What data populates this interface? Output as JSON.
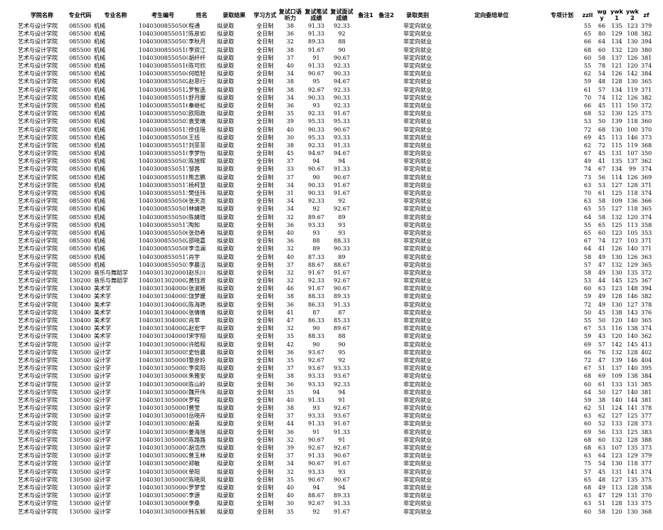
{
  "table": {
    "headers": [
      "学院名称",
      "专业代码",
      "专业名称",
      "考生编号",
      "姓名",
      "录取结果",
      "学习方式",
      "复试口语听力",
      "复试笔试成绩",
      "复试面试成绩",
      "备注1",
      "备注2",
      "录取类别",
      "定向委培单位",
      "专项计划",
      "zzll",
      "wgy",
      "ywk1",
      "ywk2",
      "zf"
    ],
    "rows": [
      [
        "艺术与设计学院",
        "085500",
        "机械",
        "104030085505009",
        "程通",
        "拟录取",
        "全日制",
        38,
        "91.33",
        "92.33",
        "",
        "",
        "非定向就业",
        "",
        "",
        55,
        66,
        135,
        123,
        379
      ],
      [
        "艺术与设计学院",
        "085500",
        "机械",
        "104030085505155",
        "陈彦如",
        "拟录取",
        "全日制",
        36,
        "91.33",
        "92",
        "",
        "",
        "非定向就业",
        "",
        "",
        65,
        80,
        129,
        108,
        382
      ],
      [
        "艺术与设计学院",
        "085500",
        "机械",
        "104030085505034",
        "李秋月",
        "拟录取",
        "全日制",
        32,
        "89.33",
        "88",
        "",
        "",
        "非定向就业",
        "",
        "",
        66,
        64,
        134,
        130,
        394
      ],
      [
        "艺术与设计学院",
        "085500",
        "机械",
        "104030085505103",
        "李双江",
        "拟录取",
        "全日制",
        38,
        "91.67",
        "90",
        "",
        "",
        "非定向就业",
        "",
        "",
        68,
        60,
        132,
        120,
        380
      ],
      [
        "艺术与设计学院",
        "085500",
        "机械",
        "104030085505040",
        "胡纤纤",
        "拟录取",
        "全日制",
        37,
        "91",
        "90.67",
        "",
        "",
        "非定向就业",
        "",
        "",
        60,
        58,
        137,
        126,
        381
      ],
      [
        "艺术与设计学院",
        "085500",
        "机械",
        "104030085505160",
        "陈可欣",
        "拟录取",
        "全日制",
        40,
        "91.33",
        "92.33",
        "",
        "",
        "非定向就业",
        "",
        "",
        55,
        78,
        121,
        120,
        374
      ],
      [
        "艺术与设计学院",
        "085500",
        "机械",
        "104030085505045",
        "何皓轻",
        "拟录取",
        "全日制",
        34,
        "90.67",
        "90.33",
        "",
        "",
        "非定向就业",
        "",
        "",
        62,
        54,
        126,
        142,
        384
      ],
      [
        "艺术与设计学院",
        "085500",
        "机械",
        "104030085505029",
        "赵思行",
        "拟录取",
        "全日制",
        38,
        "95",
        "94.67",
        "",
        "",
        "非定向就业",
        "",
        "",
        59,
        48,
        128,
        130,
        365
      ],
      [
        "艺术与设计学院",
        "085500",
        "机械",
        "104030085505120",
        "罗智选",
        "拟录取",
        "全日制",
        38,
        "92.67",
        "92.33",
        "",
        "",
        "非定向就业",
        "",
        "",
        61,
        57,
        134,
        119,
        371
      ],
      [
        "艺术与设计学院",
        "085500",
        "机械",
        "104030085505105",
        "舒月朦",
        "拟录取",
        "全日制",
        34,
        "90.33",
        "90.33",
        "",
        "",
        "非定向就业",
        "",
        "",
        70,
        74,
        112,
        126,
        382
      ],
      [
        "艺术与设计学院",
        "085500",
        "机械",
        "104030085505165",
        "秦继虹",
        "拟录取",
        "全日制",
        36,
        "93",
        "92.33",
        "",
        "",
        "非定向就业",
        "",
        "",
        66,
        45,
        111,
        150,
        372
      ],
      [
        "艺术与设计学院",
        "085500",
        "机械",
        "104030085505032",
        "欧阳政",
        "拟录取",
        "全日制",
        35,
        "92.33",
        "91.67",
        "",
        "",
        "非定向就业",
        "",
        "",
        68,
        52,
        130,
        125,
        375
      ],
      [
        "艺术与设计学院",
        "085500",
        "机械",
        "104030085505031",
        "袁芠璃",
        "拟录取",
        "全日制",
        39,
        "95.33",
        "95.33",
        "",
        "",
        "非定向就业",
        "",
        "",
        53,
        50,
        139,
        118,
        360
      ],
      [
        "艺术与设计学院",
        "085500",
        "机械",
        "104030085505131",
        "徐佳瑶",
        "拟录取",
        "全日制",
        40,
        "90.33",
        "90.67",
        "",
        "",
        "非定向就业",
        "",
        "",
        72,
        68,
        130,
        100,
        370
      ],
      [
        "艺术与设计学院",
        "085500",
        "机械",
        "104030085505002",
        "王班",
        "拟录取",
        "全日制",
        30,
        "95.33",
        "93.33",
        "",
        "",
        "非定向就业",
        "",
        "",
        69,
        45,
        113,
        146,
        373
      ],
      [
        "艺术与设计学院",
        "085500",
        "机械",
        "104030085505154",
        "刘菲菲",
        "拟录取",
        "全日制",
        38,
        "92.33",
        "91.33",
        "",
        "",
        "非定向就业",
        "",
        "",
        62,
        72,
        115,
        119,
        368
      ],
      [
        "艺术与设计学院",
        "085500",
        "机械",
        "104030085505101",
        "李梦怡",
        "拟录取",
        "全日制",
        45,
        "94.67",
        "94.67",
        "",
        "",
        "非定向就业",
        "",
        "",
        67,
        45,
        131,
        107,
        350
      ],
      [
        "艺术与设计学院",
        "085500",
        "机械",
        "104030085505036",
        "陈旭辉",
        "拟录取",
        "全日制",
        37,
        "94",
        "94",
        "",
        "",
        "非定向就业",
        "",
        "",
        49,
        41,
        135,
        137,
        362
      ],
      [
        "艺术与设计学院",
        "085500",
        "机械",
        "104030085505172",
        "邹茜",
        "拟录取",
        "全日制",
        33,
        "90.67",
        "91.33",
        "",
        "",
        "非定向就业",
        "",
        "",
        74,
        67,
        134,
        99,
        374
      ],
      [
        "艺术与设计学院",
        "085500",
        "机械",
        "104030085505180",
        "熊志鹏",
        "拟录取",
        "全日制",
        37,
        "90",
        "90.67",
        "",
        "",
        "非定向就业",
        "",
        "",
        73,
        56,
        114,
        126,
        369
      ],
      [
        "艺术与设计学院",
        "085500",
        "机械",
        "104030085505173",
        "杨柯慧",
        "拟录取",
        "全日制",
        34,
        "90.33",
        "91.67",
        "",
        "",
        "非定向就业",
        "",
        "",
        63,
        53,
        127,
        128,
        371
      ],
      [
        "艺术与设计学院",
        "085500",
        "机械",
        "104030085505139",
        "樊佳玮",
        "拟录取",
        "全日制",
        31,
        "90.33",
        "91.67",
        "",
        "",
        "非定向就业",
        "",
        "",
        70,
        61,
        125,
        118,
        374
      ],
      [
        "艺术与设计学院",
        "085500",
        "机械",
        "104030085505068",
        "张天尧",
        "拟录取",
        "全日制",
        34,
        "92.33",
        "92",
        "",
        "",
        "非定向就业",
        "",
        "",
        63,
        58,
        109,
        136,
        366
      ],
      [
        "艺术与设计学院",
        "085500",
        "机械",
        "104030085505016",
        "林婧艳",
        "拟录取",
        "全日制",
        34,
        "92",
        "92.67",
        "",
        "",
        "非定向就业",
        "",
        "",
        65,
        55,
        127,
        118,
        365
      ],
      [
        "艺术与设计学院",
        "085500",
        "机械",
        "104030085505046",
        "陈婧瑄",
        "拟录取",
        "全日制",
        32,
        "89.67",
        "89",
        "",
        "",
        "非定向就业",
        "",
        "",
        64,
        58,
        132,
        120,
        374
      ],
      [
        "艺术与设计学院",
        "085500",
        "机械",
        "104030085505177",
        "陶知",
        "拟录取",
        "全日制",
        36,
        "93.33",
        "93",
        "",
        "",
        "非定向就业",
        "",
        "",
        55,
        65,
        125,
        113,
        358
      ],
      [
        "艺术与设计学院",
        "085500",
        "机械",
        "104030085505066",
        "张劲希",
        "拟录取",
        "全日制",
        40,
        "93",
        "93",
        "",
        "",
        "非定向就业",
        "",
        "",
        65,
        60,
        123,
        105,
        353
      ],
      [
        "艺术与设计学院",
        "085500",
        "机械",
        "104030085505025",
        "邵晓嘉",
        "拟录取",
        "全日制",
        36,
        "88",
        "88.33",
        "",
        "",
        "非定向就业",
        "",
        "",
        67,
        74,
        127,
        103,
        371
      ],
      [
        "艺术与设计学院",
        "085500",
        "机械",
        "104030085505082",
        "李浩澜",
        "拟录取",
        "全日制",
        32,
        "89",
        "90.33",
        "",
        "",
        "非定向就业",
        "",
        "",
        64,
        41,
        126,
        140,
        371
      ],
      [
        "艺术与设计学院",
        "085500",
        "机械",
        "104030085505171",
        "肖宇",
        "拟录取",
        "全日制",
        40,
        "87.33",
        "89",
        "",
        "",
        "非定向就业",
        "",
        "",
        58,
        49,
        130,
        126,
        363
      ],
      [
        "艺术与设计学院",
        "085500",
        "机械",
        "104030085505037",
        "李晨洁",
        "拟录取",
        "全日制",
        37,
        "88.67",
        "88.67",
        "",
        "",
        "非定向就业",
        "",
        "",
        57,
        47,
        132,
        129,
        365
      ],
      [
        "艺术与设计学院",
        "130200",
        "音乐与舞蹈学",
        "104030130200011",
        "赵乐川",
        "拟录取",
        "全日制",
        32,
        "91.67",
        "91.67",
        "",
        "",
        "非定向就业",
        "",
        "",
        58,
        49,
        130,
        135,
        372
      ],
      [
        "艺术与设计学院",
        "130200",
        "音乐与舞蹈学",
        "104030130200020",
        "黄钰浟",
        "拟录取",
        "全日制",
        32,
        "92.33",
        "92.67",
        "",
        "",
        "非定向就业",
        "",
        "",
        53,
        44,
        145,
        125,
        367
      ],
      [
        "艺术与设计学院",
        "130400",
        "美术学",
        "104030130400043",
        "张淑颖",
        "拟录取",
        "全日制",
        46,
        "91.67",
        "90.67",
        "",
        "",
        "非定向就业",
        "",
        "",
        60,
        63,
        123,
        148,
        394
      ],
      [
        "艺术与设计学院",
        "130400",
        "美术学",
        "104030130400031",
        "饶梦媛",
        "拟录取",
        "全日制",
        38,
        "88.33",
        "89.33",
        "",
        "",
        "非定向就业",
        "",
        "",
        59,
        49,
        128,
        146,
        382
      ],
      [
        "艺术与设计学院",
        "130400",
        "美术学",
        "104030130400025",
        "陈海艳",
        "拟录取",
        "全日制",
        36,
        "86.33",
        "91.33",
        "",
        "",
        "非定向就业",
        "",
        "",
        72,
        49,
        130,
        127,
        378
      ],
      [
        "艺术与设计学院",
        "130400",
        "美术学",
        "104030130400047",
        "张倩倩",
        "拟录取",
        "全日制",
        41,
        "87",
        "87",
        "",
        "",
        "非定向就业",
        "",
        "",
        50,
        45,
        138,
        143,
        376
      ],
      [
        "艺术与设计学院",
        "130400",
        "美术学",
        "104030130400037",
        "肖苹",
        "拟录取",
        "全日制",
        47,
        "86.33",
        "85.33",
        "",
        "",
        "非定向就业",
        "",
        "",
        55,
        50,
        120,
        140,
        365
      ],
      [
        "艺术与设计学院",
        "130400",
        "美术学",
        "104030130400022",
        "赵宏宇",
        "拟录取",
        "全日制",
        32,
        "90",
        "89.67",
        "",
        "",
        "非定向就业",
        "",
        "",
        67,
        53,
        116,
        138,
        374
      ],
      [
        "艺术与设计学院",
        "130400",
        "美术学",
        "104030130400016",
        "宋宇翔",
        "拟录取",
        "全日制",
        35,
        "88.33",
        "88",
        "",
        "",
        "非定向就业",
        "",
        "",
        59,
        43,
        120,
        140,
        362
      ],
      [
        "艺术与设计学院",
        "130500",
        "设计学",
        "104030130500046",
        "许皓程",
        "拟录取",
        "全日制",
        42,
        "90",
        "90",
        "",
        "",
        "非定向就业",
        "",
        "",
        69,
        57,
        142,
        145,
        413
      ],
      [
        "艺术与设计学院",
        "130500",
        "设计学",
        "104030130500058",
        "史怡晨",
        "拟录取",
        "全日制",
        36,
        "93.67",
        "95",
        "",
        "",
        "非定向就业",
        "",
        "",
        66,
        76,
        132,
        128,
        402
      ],
      [
        "艺术与设计学院",
        "130500",
        "设计学",
        "104030130500017",
        "黎彦姈",
        "拟录取",
        "全日制",
        35,
        "92.67",
        "92",
        "",
        "",
        "非定向就业",
        "",
        "",
        72,
        47,
        139,
        146,
        404
      ],
      [
        "艺术与设计学院",
        "130500",
        "设计学",
        "104030130500031",
        "李奕阳",
        "拟录取",
        "全日制",
        37,
        "93.67",
        "93.33",
        "",
        "",
        "非定向就业",
        "",
        "",
        67,
        51,
        137,
        140,
        395
      ],
      [
        "艺术与设计学院",
        "130500",
        "设计学",
        "104030130500006",
        "朱雅安",
        "拟录取",
        "全日制",
        38,
        "93.33",
        "93.67",
        "",
        "",
        "非定向就业",
        "",
        "",
        68,
        69,
        109,
        138,
        384
      ],
      [
        "艺术与设计学院",
        "130500",
        "设计学",
        "104030130500086",
        "陈山岭",
        "拟录取",
        "全日制",
        36,
        "93.33",
        "92.33",
        "",
        "",
        "非定向就业",
        "",
        "",
        60,
        61,
        133,
        131,
        385
      ],
      [
        "艺术与设计学院",
        "130500",
        "设计学",
        "104030130500048",
        "魏开伟",
        "拟录取",
        "全日制",
        35,
        "94",
        "94",
        "",
        "",
        "非定向就业",
        "",
        "",
        64,
        50,
        127,
        140,
        381
      ],
      [
        "艺术与设计学院",
        "130500",
        "设计学",
        "104030130500067",
        "罗程",
        "拟录取",
        "全日制",
        40,
        "91.33",
        "91",
        "",
        "",
        "非定向就业",
        "",
        "",
        59,
        38,
        140,
        144,
        381
      ],
      [
        "艺术与设计学院",
        "130500",
        "设计学",
        "104030130500016",
        "曾莹",
        "拟录取",
        "全日制",
        38,
        "93",
        "92.67",
        "",
        "",
        "非定向就业",
        "",
        "",
        62,
        51,
        124,
        141,
        378
      ],
      [
        "艺术与设计学院",
        "130500",
        "设计学",
        "104030130500018",
        "岳晓卉",
        "拟录取",
        "全日制",
        37,
        "93.33",
        "93.67",
        "",
        "",
        "非定向就业",
        "",
        "",
        63,
        62,
        127,
        125,
        377
      ],
      [
        "艺术与设计学院",
        "130500",
        "设计学",
        "104030130500032",
        "胡青",
        "拟录取",
        "全日制",
        44,
        "91.33",
        "91.67",
        "",
        "",
        "非定向就业",
        "",
        "",
        60,
        52,
        133,
        128,
        373
      ],
      [
        "艺术与设计学院",
        "130500",
        "设计学",
        "104030130500042",
        "姜海旭",
        "拟录取",
        "全日制",
        36,
        "91",
        "91.33",
        "",
        "",
        "非定向就业",
        "",
        "",
        69,
        56,
        133,
        125,
        383
      ],
      [
        "艺术与设计学院",
        "130500",
        "设计学",
        "104030130500052",
        "陈路路",
        "拟录取",
        "全日制",
        32,
        "90.67",
        "91",
        "",
        "",
        "非定向就业",
        "",
        "",
        68,
        60,
        132,
        128,
        388
      ],
      [
        "艺术与设计学院",
        "130500",
        "设计学",
        "104030130500076",
        "胡浩然",
        "拟录取",
        "全日制",
        39,
        "92.67",
        "92.67",
        "",
        "",
        "非定向就业",
        "",
        "",
        68,
        63,
        107,
        135,
        373
      ],
      [
        "艺术与设计学院",
        "130500",
        "设计学",
        "104030130500021",
        "曾玉林",
        "拟录取",
        "全日制",
        37,
        "91.33",
        "90.67",
        "",
        "",
        "非定向就业",
        "",
        "",
        63,
        64,
        123,
        129,
        379
      ],
      [
        "艺术与设计学院",
        "130500",
        "设计学",
        "104030130500053",
        "郑敏",
        "拟录取",
        "全日制",
        34,
        "90.67",
        "91.67",
        "",
        "",
        "非定向就业",
        "",
        "",
        75,
        54,
        130,
        118,
        377
      ],
      [
        "艺术与设计学院",
        "130500",
        "设计学",
        "104030130500007",
        "单阳",
        "拟录取",
        "全日制",
        32,
        "93.33",
        "93",
        "",
        "",
        "非定向就业",
        "",
        "",
        57,
        45,
        131,
        141,
        374
      ],
      [
        "艺术与设计学院",
        "130500",
        "设计学",
        "104030130500056",
        "陈晓凤",
        "拟录取",
        "全日制",
        35,
        "90.67",
        "90.67",
        "",
        "",
        "非定向就业",
        "",
        "",
        65,
        48,
        127,
        135,
        375
      ],
      [
        "艺术与设计学院",
        "130500",
        "设计学",
        "104030130500049",
        "罗梦莹",
        "拟录取",
        "全日制",
        40,
        "94",
        "94",
        "",
        "",
        "非定向就业",
        "",
        "",
        68,
        49,
        113,
        128,
        358
      ],
      [
        "艺术与设计学院",
        "130500",
        "设计学",
        "104030130500070",
        "李源",
        "拟录取",
        "全日制",
        40,
        "88.67",
        "89.33",
        "",
        "",
        "非定向就业",
        "",
        "",
        63,
        47,
        129,
        131,
        370
      ],
      [
        "艺术与设计学院",
        "130500",
        "设计学",
        "104030130500088",
        "李桑",
        "拟录取",
        "全日制",
        30,
        "92.67",
        "91.33",
        "",
        "",
        "非定向就业",
        "",
        "",
        63,
        51,
        128,
        133,
        375
      ],
      [
        "艺术与设计学院",
        "130500",
        "设计学",
        "104030130500085",
        "韩东颖",
        "拟录取",
        "全日制",
        35,
        "92",
        "91.67",
        "",
        "",
        "非定向就业",
        "",
        "",
        60,
        58,
        120,
        130,
        368
      ]
    ]
  }
}
